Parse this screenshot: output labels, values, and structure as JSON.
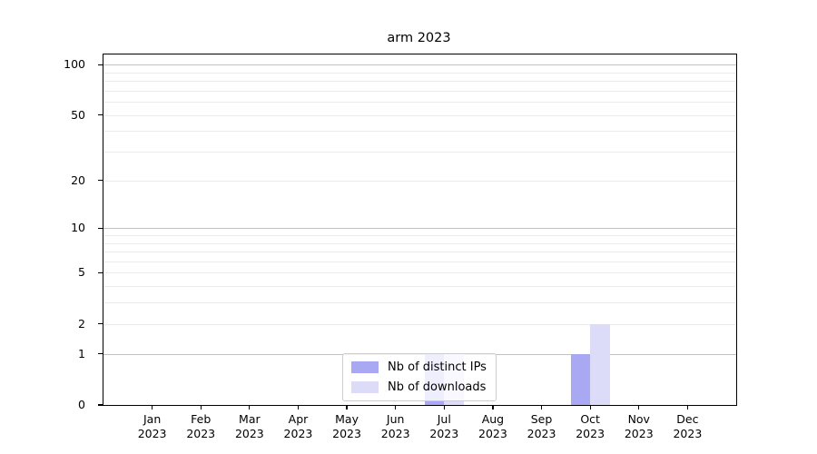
{
  "figure": {
    "title": "arm 2023"
  },
  "legend": {
    "items": [
      {
        "label": "Nb of distinct IPs",
        "color": "#a9a9f3"
      },
      {
        "label": "Nb of downloads",
        "color": "#dcdcf8"
      }
    ]
  },
  "chart_data": {
    "type": "bar",
    "title": "arm 2023",
    "categories": [
      "Jan",
      "Feb",
      "Mar",
      "Apr",
      "May",
      "Jun",
      "Jul",
      "Aug",
      "Sep",
      "Oct",
      "Nov",
      "Dec"
    ],
    "year": "2023",
    "series": [
      {
        "name": "Nb of distinct IPs",
        "color": "#a9a9f3",
        "values": [
          0,
          0,
          0,
          0,
          0,
          0,
          1,
          0,
          0,
          1,
          0,
          0
        ]
      },
      {
        "name": "Nb of downloads",
        "color": "#dcdcf8",
        "values": [
          0,
          0,
          0,
          0,
          0,
          0,
          1,
          0,
          0,
          2,
          0,
          0
        ]
      }
    ],
    "yscale": "log10(value+1)",
    "ytick_labels": [
      0,
      1,
      2,
      5,
      10,
      20,
      50,
      100
    ],
    "ylim": [
      0,
      115
    ],
    "grid": true,
    "legend_position": "lower center",
    "bar_colors": {
      "distinct_ips": "#a9a9f3",
      "downloads": "#dcdcf8"
    },
    "grid_major_color": "#c2c2c2",
    "grid_minor_color": "#ebebeb"
  }
}
